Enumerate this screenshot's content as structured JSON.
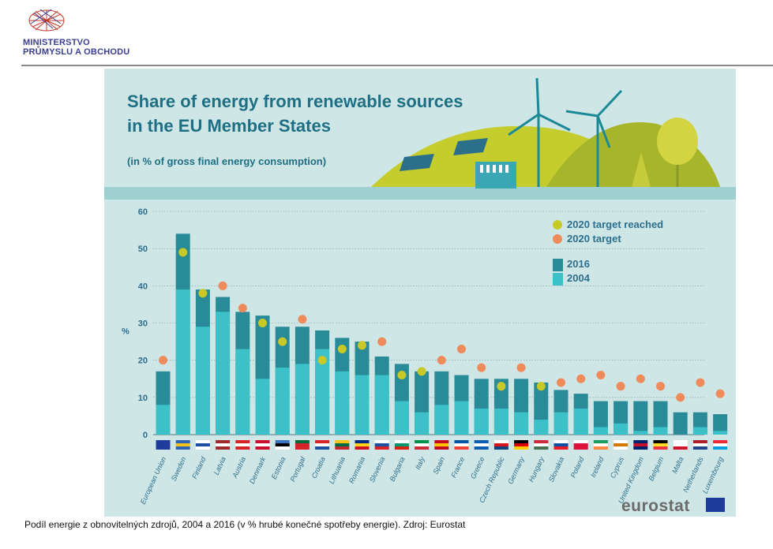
{
  "header": {
    "logo_line1": "MINISTERSTVO",
    "logo_line2": "PRŮMYSLU A OBCHODU"
  },
  "infographic": {
    "title_line1": "Share of energy from renewable sources",
    "title_line2": "in the EU Member States",
    "subtitle": "(in % of gross final energy consumption)",
    "brand": "eurostat"
  },
  "caption": "Podíl energie z obnovitelných zdrojů, 2004 a 2016 (v % hrubé konečné spotřeby energie). Zdroj: Eurostat",
  "colors": {
    "bar_2016": "#2a8b98",
    "bar_2004": "#3cc1c8",
    "target_reached": "#c8c826",
    "target": "#ef8a5a",
    "panel": "#cfe6e6",
    "title": "#1e6f83"
  },
  "chart_data": {
    "type": "bar",
    "title": "Share of energy from renewable sources in the EU Member States",
    "subtitle": "(in % of gross final energy consumption)",
    "ylabel": "%",
    "ylim": [
      0,
      60
    ],
    "yticks": [
      0,
      10,
      20,
      30,
      40,
      50,
      60
    ],
    "grid": true,
    "legend_position": "top-right",
    "legend": {
      "target_reached": "2020 target reached",
      "target": "2020 target",
      "y2016": "2016",
      "y2004": "2004"
    },
    "categories": [
      "European Union",
      "Sweden",
      "Finland",
      "Latvia",
      "Austria",
      "Denmark",
      "Estonia",
      "Portugal",
      "Croatia",
      "Lithuania",
      "Romania",
      "Slovenia",
      "Bulgaria",
      "Italy",
      "Spain",
      "France",
      "Greece",
      "Czech Republic",
      "Germany",
      "Hungary",
      "Slovakia",
      "Poland",
      "Ireland",
      "Cyprus",
      "United Kingdom",
      "Belgium",
      "Malta",
      "Netherlands",
      "Luxembourg"
    ],
    "series": [
      {
        "name": "2016",
        "values": [
          17,
          54,
          39,
          37,
          33,
          32,
          29,
          29,
          28,
          26,
          25,
          21,
          19,
          17,
          17,
          16,
          15,
          15,
          15,
          14,
          12,
          11,
          9,
          9,
          9,
          9,
          6,
          6,
          5.5
        ]
      },
      {
        "name": "2004",
        "values": [
          8,
          39,
          29,
          33,
          23,
          15,
          18,
          19,
          23,
          17,
          16,
          16,
          9,
          6,
          8,
          9,
          7,
          7,
          6,
          4,
          6,
          7,
          2,
          3,
          1,
          2,
          0,
          2,
          1
        ]
      },
      {
        "name": "2020 target",
        "values": [
          20,
          49,
          38,
          40,
          34,
          30,
          25,
          31,
          20,
          23,
          24,
          25,
          16,
          17,
          20,
          23,
          18,
          13,
          18,
          13,
          14,
          15,
          16,
          13,
          15,
          13,
          10,
          14,
          11
        ]
      }
    ],
    "target_reached": [
      false,
      true,
      true,
      false,
      false,
      true,
      true,
      false,
      true,
      true,
      true,
      false,
      true,
      true,
      false,
      false,
      false,
      true,
      false,
      true,
      false,
      false,
      false,
      false,
      false,
      false,
      false,
      false,
      false
    ]
  }
}
